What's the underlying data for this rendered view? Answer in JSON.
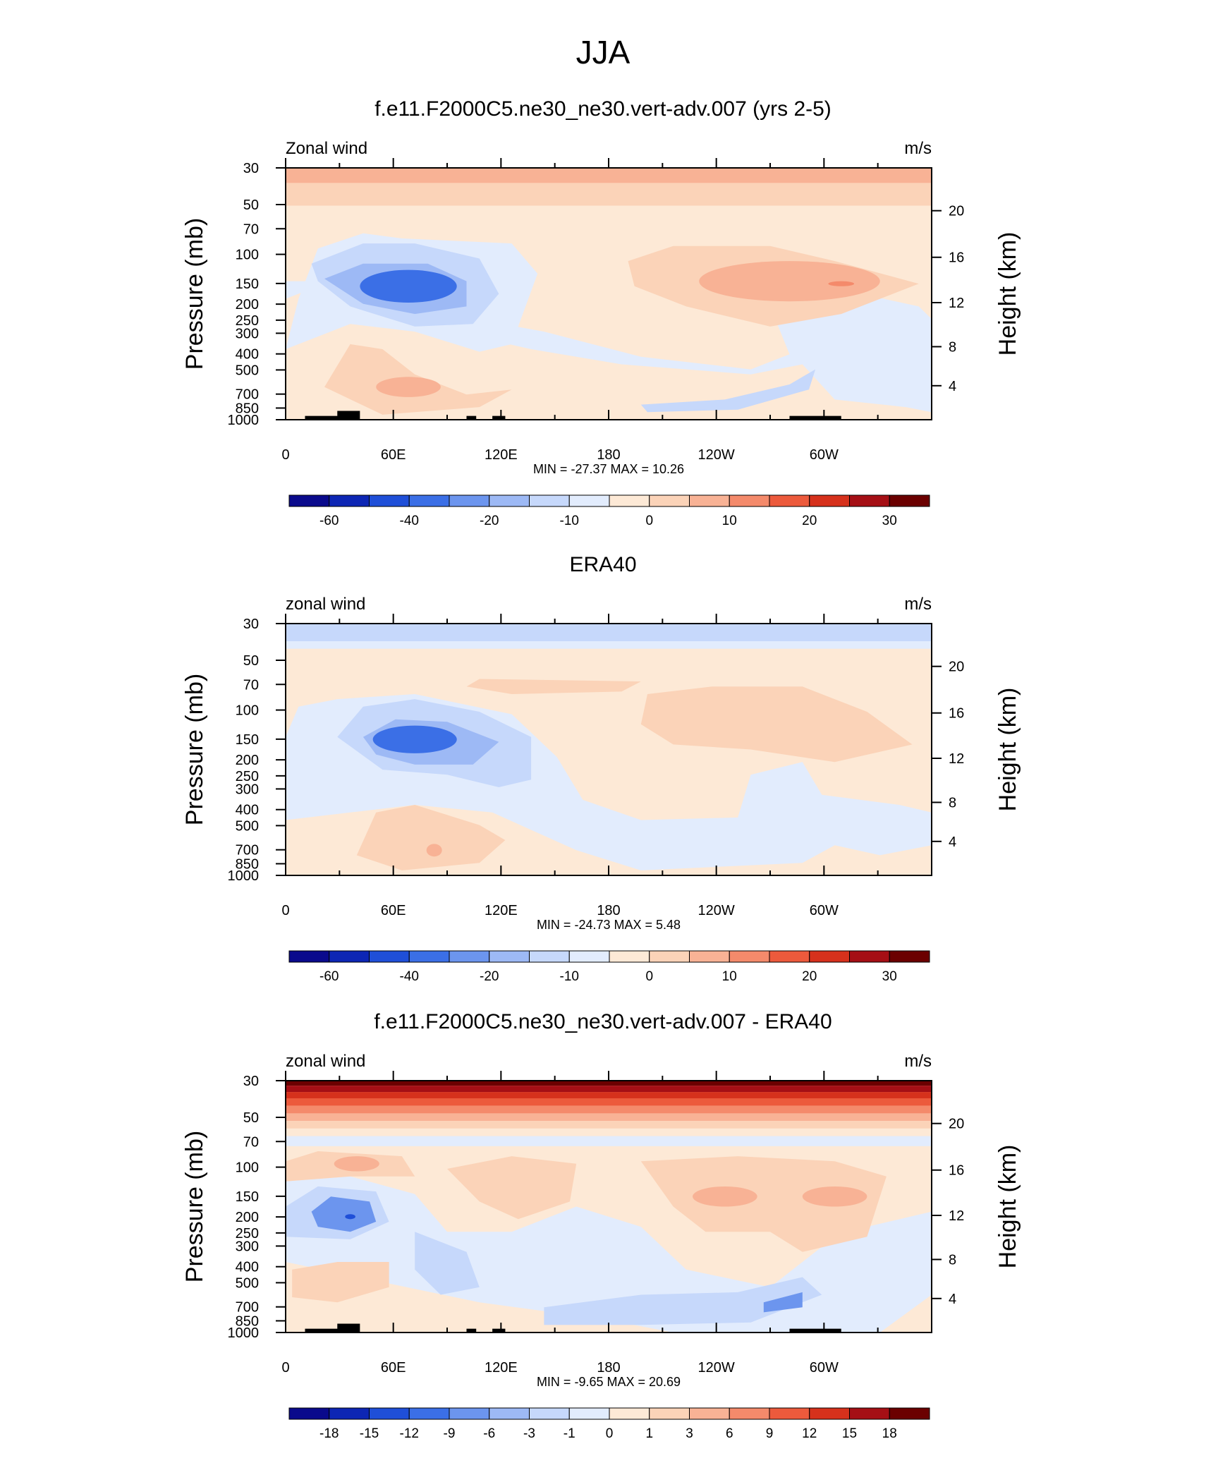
{
  "figure": {
    "title": "JJA"
  },
  "colors": {
    "div_colors": [
      "#0a0a8c",
      "#0d26b4",
      "#1f4fd8",
      "#3b6fe6",
      "#6c95ee",
      "#9db9f5",
      "#c6d8fb",
      "#e2ecfd",
      "#fde9d6",
      "#fbd3b8",
      "#f8b295",
      "#f48a6b",
      "#ec5a3c",
      "#d6311c",
      "#a50f15",
      "#6b0000"
    ]
  },
  "chart_data": [
    {
      "type": "heatmap",
      "title": "f.e11.F2000C5.ne30_ne30.vert-adv.007 (yrs 2-5)",
      "left_label": "Zonal wind",
      "units": "m/s",
      "ylabel": "Pressure (mb)",
      "ylabel_right": "Height (km)",
      "x_ticks": [
        "0",
        "60E",
        "120E",
        "180",
        "120W",
        "60W"
      ],
      "y_ticks": [
        "30",
        "50",
        "70",
        "100",
        "150",
        "200",
        "250",
        "300",
        "400",
        "500",
        "700",
        "850",
        "1000"
      ],
      "y_ticks_right": [
        "20",
        "16",
        "12",
        "8",
        "4"
      ],
      "stats": "MIN = -27.37  MAX =  10.26",
      "colorbar_levels": [
        "-60",
        "-40",
        "-20",
        "-10",
        "0",
        "10",
        "20",
        "30"
      ],
      "colorbar_label_pos": [
        1,
        3,
        5,
        7,
        9,
        11,
        13,
        15
      ],
      "x_range": [
        0,
        360
      ],
      "y_range_mb": [
        30,
        1000
      ]
    },
    {
      "type": "heatmap",
      "title": "ERA40",
      "left_label": "zonal wind",
      "units": "m/s",
      "ylabel": "Pressure (mb)",
      "ylabel_right": "Height (km)",
      "x_ticks": [
        "0",
        "60E",
        "120E",
        "180",
        "120W",
        "60W"
      ],
      "y_ticks": [
        "30",
        "50",
        "70",
        "100",
        "150",
        "200",
        "250",
        "300",
        "400",
        "500",
        "700",
        "850",
        "1000"
      ],
      "y_ticks_right": [
        "20",
        "16",
        "12",
        "8",
        "4"
      ],
      "stats": "MIN = -24.73  MAX =   5.48",
      "colorbar_levels": [
        "-60",
        "-40",
        "-20",
        "-10",
        "0",
        "10",
        "20",
        "30"
      ],
      "colorbar_label_pos": [
        1,
        3,
        5,
        7,
        9,
        11,
        13,
        15
      ],
      "x_range": [
        0,
        360
      ],
      "y_range_mb": [
        30,
        1000
      ]
    },
    {
      "type": "heatmap",
      "title": "f.e11.F2000C5.ne30_ne30.vert-adv.007 - ERA40",
      "left_label": "zonal wind",
      "units": "m/s",
      "ylabel": "Pressure (mb)",
      "ylabel_right": "Height (km)",
      "x_ticks": [
        "0",
        "60E",
        "120E",
        "180",
        "120W",
        "60W"
      ],
      "y_ticks": [
        "30",
        "50",
        "70",
        "100",
        "150",
        "200",
        "250",
        "300",
        "400",
        "500",
        "700",
        "850",
        "1000"
      ],
      "y_ticks_right": [
        "20",
        "16",
        "12",
        "8",
        "4"
      ],
      "stats": "MIN =  -9.65  MAX =  20.69",
      "colorbar_levels": [
        "-18",
        "-15",
        "-12",
        "-9",
        "-6",
        "-3",
        "-1",
        "0",
        "1",
        "3",
        "6",
        "9",
        "12",
        "15",
        "18"
      ],
      "colorbar_label_pos": [
        1,
        2,
        3,
        4,
        5,
        6,
        7,
        8,
        9,
        10,
        11,
        12,
        13,
        14,
        15
      ],
      "x_range": [
        0,
        360
      ],
      "y_range_mb": [
        30,
        1000
      ]
    }
  ]
}
